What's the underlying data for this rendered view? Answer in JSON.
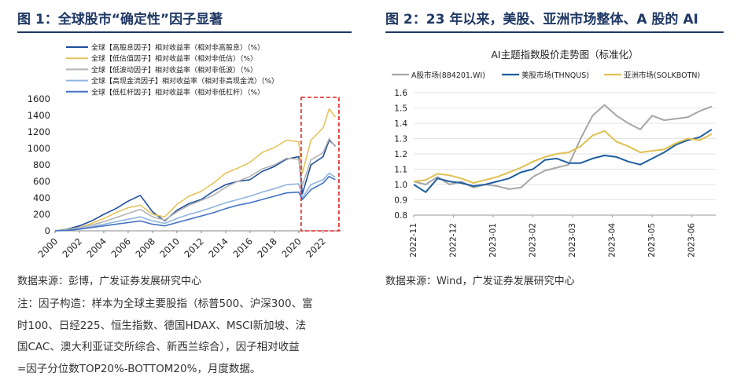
{
  "figure1": {
    "title": "图 1：全球股市“确定性”因子显著",
    "legend": [
      {
        "label": "全球【高股息因子】相对收益率（相对非高股息）（%）",
        "color": "#1f4e9c"
      },
      {
        "label": "全球【低估值因子】相对收益率（相对非低估）（%）",
        "color": "#e6c35c"
      },
      {
        "label": "全球【低波动因子】相对收益率（相对非低波）（%）",
        "color": "#b3b3b3"
      },
      {
        "label": "全球【高现金流因子】相对收益率（相对非高现金流）（%）",
        "color": "#8fb4dd"
      },
      {
        "label": "全球【低杠杆因子】相对收益率（相对非低杠杆）（%）",
        "color": "#4472c4"
      }
    ],
    "source": "数据来源：彭博，广发证券发展研究中心",
    "note_lines": [
      "注：因子构造：样本为全球主要股指（标普500、沪深300、富",
      "时100、日经225、恒生指数、德国HDAX、MSCI新加坡、法",
      "国CAC、澳大利亚证交所综合、新西兰综合），因子相对收益",
      "=因子分位数TOP20%-BOTTOM20%，月度数据。"
    ]
  },
  "figure2": {
    "title": "图 2：23 年以来，美股、亚洲市场整体、A 股的 AI",
    "source": "数据来源：Wind，广发证券发展研究中心"
  },
  "chart_data": [
    {
      "type": "line",
      "title": "",
      "xlabel": "",
      "ylabel": "",
      "x": [
        2000,
        2001,
        2002,
        2003,
        2004,
        2005,
        2006,
        2007,
        2008,
        2009,
        2010,
        2011,
        2012,
        2013,
        2014,
        2015,
        2016,
        2017,
        2018,
        2019,
        2020,
        2020.3,
        2021,
        2022,
        2022.5,
        2023
      ],
      "xlim": [
        2000,
        2023.5
      ],
      "ylim": [
        0,
        1600
      ],
      "x_ticks": [
        "2000",
        "2002",
        "2004",
        "2006",
        "2008",
        "2010",
        "2012",
        "2014",
        "2016",
        "2018",
        "2020",
        "2022"
      ],
      "y_ticks": [
        "0",
        "200",
        "400",
        "600",
        "800",
        "1000",
        "1200",
        "1400",
        "1600"
      ],
      "highlight_range": [
        2020.2,
        2023.3
      ],
      "series": [
        {
          "name": "全球【高股息因子】相对收益率（相对非高股息）（%）",
          "color": "#1f4e9c",
          "values": [
            0,
            20,
            60,
            120,
            200,
            270,
            360,
            430,
            230,
            120,
            250,
            330,
            380,
            480,
            560,
            600,
            620,
            720,
            780,
            870,
            900,
            450,
            800,
            900,
            1100,
            1030
          ]
        },
        {
          "name": "全球【低估值因子】相对收益率（相对非低估）（%）",
          "color": "#e6c35c",
          "values": [
            0,
            15,
            40,
            90,
            150,
            220,
            280,
            310,
            200,
            170,
            320,
            420,
            480,
            580,
            700,
            760,
            830,
            950,
            1010,
            1100,
            1080,
            700,
            1100,
            1250,
            1480,
            1380
          ]
        },
        {
          "name": "全球【低波动因子】相对收益率（相对非低波）（%）",
          "color": "#b3b3b3",
          "values": [
            0,
            10,
            40,
            70,
            110,
            160,
            210,
            260,
            170,
            130,
            230,
            310,
            370,
            430,
            530,
            600,
            660,
            750,
            800,
            880,
            870,
            550,
            860,
            950,
            1120,
            1020
          ]
        },
        {
          "name": "全球【高现金流因子】相对收益率（相对非高现金流）（%）",
          "color": "#8fb4dd",
          "values": [
            0,
            8,
            25,
            50,
            80,
            110,
            140,
            170,
            120,
            90,
            150,
            200,
            240,
            290,
            340,
            380,
            420,
            470,
            510,
            560,
            570,
            400,
            560,
            620,
            700,
            650
          ]
        },
        {
          "name": "全球【低杠杆因子】相对收益率（相对非低杠杆）（%）",
          "color": "#4472c4",
          "values": [
            0,
            6,
            20,
            40,
            60,
            80,
            100,
            120,
            80,
            60,
            100,
            140,
            180,
            220,
            270,
            310,
            340,
            380,
            420,
            460,
            470,
            380,
            500,
            580,
            660,
            620
          ]
        }
      ]
    },
    {
      "type": "line",
      "title": "AI主题指数股价走势图（标准化）",
      "xlabel": "",
      "ylabel": "",
      "x_ticks": [
        "2022-11",
        "2022-12",
        "2023-01",
        "2023-02",
        "2023-03",
        "2023-04",
        "2023-05",
        "2023-06"
      ],
      "x_tick_pos": [
        0,
        1,
        2,
        3,
        4,
        5,
        6,
        7
      ],
      "xlim": [
        0,
        7.6
      ],
      "ylim": [
        0.8,
        1.6
      ],
      "y_ticks": [
        "0.8",
        "0.9",
        "1.0",
        "1.1",
        "1.2",
        "1.3",
        "1.4",
        "1.5",
        "1.6"
      ],
      "series": [
        {
          "name": "A股市场(884201.WI)",
          "color": "#a6a6a6",
          "x": [
            0,
            0.3,
            0.6,
            0.9,
            1.2,
            1.5,
            1.8,
            2.1,
            2.4,
            2.7,
            3.0,
            3.3,
            3.6,
            3.9,
            4.2,
            4.5,
            4.8,
            5.1,
            5.4,
            5.7,
            6.0,
            6.3,
            6.6,
            6.9,
            7.2,
            7.5
          ],
          "values": [
            1.02,
            1.0,
            1.05,
            1.0,
            1.02,
            0.98,
            1.0,
            0.99,
            0.97,
            0.98,
            1.05,
            1.09,
            1.11,
            1.13,
            1.3,
            1.45,
            1.52,
            1.45,
            1.4,
            1.36,
            1.45,
            1.42,
            1.43,
            1.44,
            1.48,
            1.51
          ]
        },
        {
          "name": "美股市场(THNQUS)",
          "color": "#1f5fa0",
          "x": [
            0,
            0.3,
            0.6,
            0.9,
            1.2,
            1.5,
            1.8,
            2.1,
            2.4,
            2.7,
            3.0,
            3.3,
            3.6,
            3.9,
            4.2,
            4.5,
            4.8,
            5.1,
            5.4,
            5.7,
            6.0,
            6.3,
            6.6,
            6.9,
            7.2,
            7.5
          ],
          "values": [
            1.0,
            0.95,
            1.04,
            1.02,
            1.01,
            0.99,
            1.0,
            1.02,
            1.04,
            1.08,
            1.1,
            1.16,
            1.17,
            1.14,
            1.14,
            1.17,
            1.19,
            1.18,
            1.15,
            1.13,
            1.17,
            1.21,
            1.26,
            1.29,
            1.31,
            1.36
          ]
        },
        {
          "name": "亚洲市场(SOLKBOTN)",
          "color": "#e0c050",
          "x": [
            0,
            0.3,
            0.6,
            0.9,
            1.2,
            1.5,
            1.8,
            2.1,
            2.4,
            2.7,
            3.0,
            3.3,
            3.6,
            3.9,
            4.2,
            4.5,
            4.8,
            5.1,
            5.4,
            5.7,
            6.0,
            6.3,
            6.6,
            6.9,
            7.2,
            7.5
          ],
          "values": [
            1.02,
            1.03,
            1.07,
            1.06,
            1.04,
            1.01,
            1.03,
            1.05,
            1.08,
            1.11,
            1.15,
            1.18,
            1.2,
            1.21,
            1.25,
            1.32,
            1.35,
            1.28,
            1.25,
            1.21,
            1.22,
            1.23,
            1.27,
            1.3,
            1.29,
            1.33
          ]
        }
      ]
    }
  ]
}
